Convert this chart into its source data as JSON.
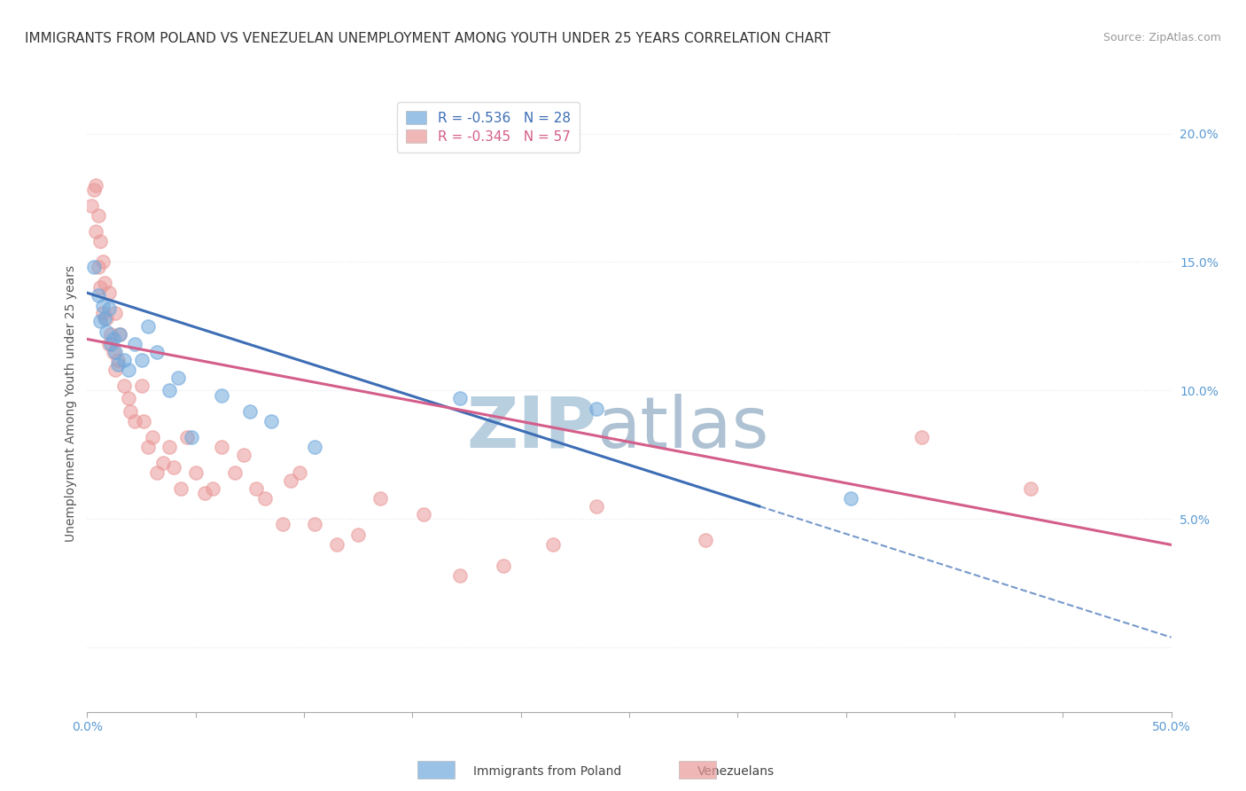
{
  "title": "IMMIGRANTS FROM POLAND VS VENEZUELAN UNEMPLOYMENT AMONG YOUTH UNDER 25 YEARS CORRELATION CHART",
  "source": "Source: ZipAtlas.com",
  "ylabel": "Unemployment Among Youth under 25 years",
  "xlim": [
    0.0,
    0.5
  ],
  "ylim": [
    -0.025,
    0.215
  ],
  "yticks": [
    0.0,
    0.05,
    0.1,
    0.15,
    0.2
  ],
  "ytick_labels": [
    "",
    "5.0%",
    "10.0%",
    "15.0%",
    "20.0%"
  ],
  "legend1_label": "R = -0.536   N = 28",
  "legend2_label": "R = -0.345   N = 57",
  "blue_scatter_color": "#6fa8dc",
  "pink_scatter_color": "#ea9999",
  "blue_line_color": "#3d6eb5",
  "pink_line_color": "#d45e8a",
  "bg_color": "#ffffff",
  "grid_color": "#e0e8f0",
  "scatter_blue": [
    [
      0.003,
      0.148
    ],
    [
      0.005,
      0.137
    ],
    [
      0.006,
      0.127
    ],
    [
      0.007,
      0.133
    ],
    [
      0.008,
      0.128
    ],
    [
      0.009,
      0.123
    ],
    [
      0.01,
      0.132
    ],
    [
      0.011,
      0.118
    ],
    [
      0.012,
      0.12
    ],
    [
      0.013,
      0.115
    ],
    [
      0.014,
      0.11
    ],
    [
      0.015,
      0.122
    ],
    [
      0.017,
      0.112
    ],
    [
      0.019,
      0.108
    ],
    [
      0.022,
      0.118
    ],
    [
      0.025,
      0.112
    ],
    [
      0.028,
      0.125
    ],
    [
      0.032,
      0.115
    ],
    [
      0.038,
      0.1
    ],
    [
      0.042,
      0.105
    ],
    [
      0.048,
      0.082
    ],
    [
      0.062,
      0.098
    ],
    [
      0.075,
      0.092
    ],
    [
      0.085,
      0.088
    ],
    [
      0.105,
      0.078
    ],
    [
      0.172,
      0.097
    ],
    [
      0.235,
      0.093
    ],
    [
      0.352,
      0.058
    ]
  ],
  "scatter_pink": [
    [
      0.002,
      0.172
    ],
    [
      0.003,
      0.178
    ],
    [
      0.004,
      0.18
    ],
    [
      0.004,
      0.162
    ],
    [
      0.005,
      0.168
    ],
    [
      0.005,
      0.148
    ],
    [
      0.006,
      0.158
    ],
    [
      0.006,
      0.14
    ],
    [
      0.007,
      0.15
    ],
    [
      0.007,
      0.13
    ],
    [
      0.008,
      0.142
    ],
    [
      0.009,
      0.128
    ],
    [
      0.01,
      0.138
    ],
    [
      0.01,
      0.118
    ],
    [
      0.011,
      0.122
    ],
    [
      0.012,
      0.115
    ],
    [
      0.013,
      0.13
    ],
    [
      0.013,
      0.108
    ],
    [
      0.014,
      0.112
    ],
    [
      0.015,
      0.122
    ],
    [
      0.017,
      0.102
    ],
    [
      0.019,
      0.097
    ],
    [
      0.02,
      0.092
    ],
    [
      0.022,
      0.088
    ],
    [
      0.025,
      0.102
    ],
    [
      0.026,
      0.088
    ],
    [
      0.028,
      0.078
    ],
    [
      0.03,
      0.082
    ],
    [
      0.032,
      0.068
    ],
    [
      0.035,
      0.072
    ],
    [
      0.038,
      0.078
    ],
    [
      0.04,
      0.07
    ],
    [
      0.043,
      0.062
    ],
    [
      0.046,
      0.082
    ],
    [
      0.05,
      0.068
    ],
    [
      0.054,
      0.06
    ],
    [
      0.058,
      0.062
    ],
    [
      0.062,
      0.078
    ],
    [
      0.068,
      0.068
    ],
    [
      0.072,
      0.075
    ],
    [
      0.078,
      0.062
    ],
    [
      0.082,
      0.058
    ],
    [
      0.09,
      0.048
    ],
    [
      0.094,
      0.065
    ],
    [
      0.098,
      0.068
    ],
    [
      0.105,
      0.048
    ],
    [
      0.115,
      0.04
    ],
    [
      0.125,
      0.044
    ],
    [
      0.135,
      0.058
    ],
    [
      0.155,
      0.052
    ],
    [
      0.172,
      0.028
    ],
    [
      0.192,
      0.032
    ],
    [
      0.215,
      0.04
    ],
    [
      0.235,
      0.055
    ],
    [
      0.285,
      0.042
    ],
    [
      0.385,
      0.082
    ],
    [
      0.435,
      0.062
    ]
  ],
  "trend_blue_x0": 0.0,
  "trend_blue_y0": 0.138,
  "trend_blue_x1": 0.31,
  "trend_blue_y1": 0.055,
  "trend_blue_dashed_x0": 0.31,
  "trend_blue_dashed_y0": 0.055,
  "trend_blue_dashed_x1": 0.5,
  "trend_blue_dashed_y1": 0.004,
  "trend_pink_x0": 0.0,
  "trend_pink_y0": 0.12,
  "trend_pink_x1": 0.5,
  "trend_pink_y1": 0.04,
  "watermark_zip_color": "#b8cfe0",
  "watermark_atlas_color": "#a0b8cc"
}
